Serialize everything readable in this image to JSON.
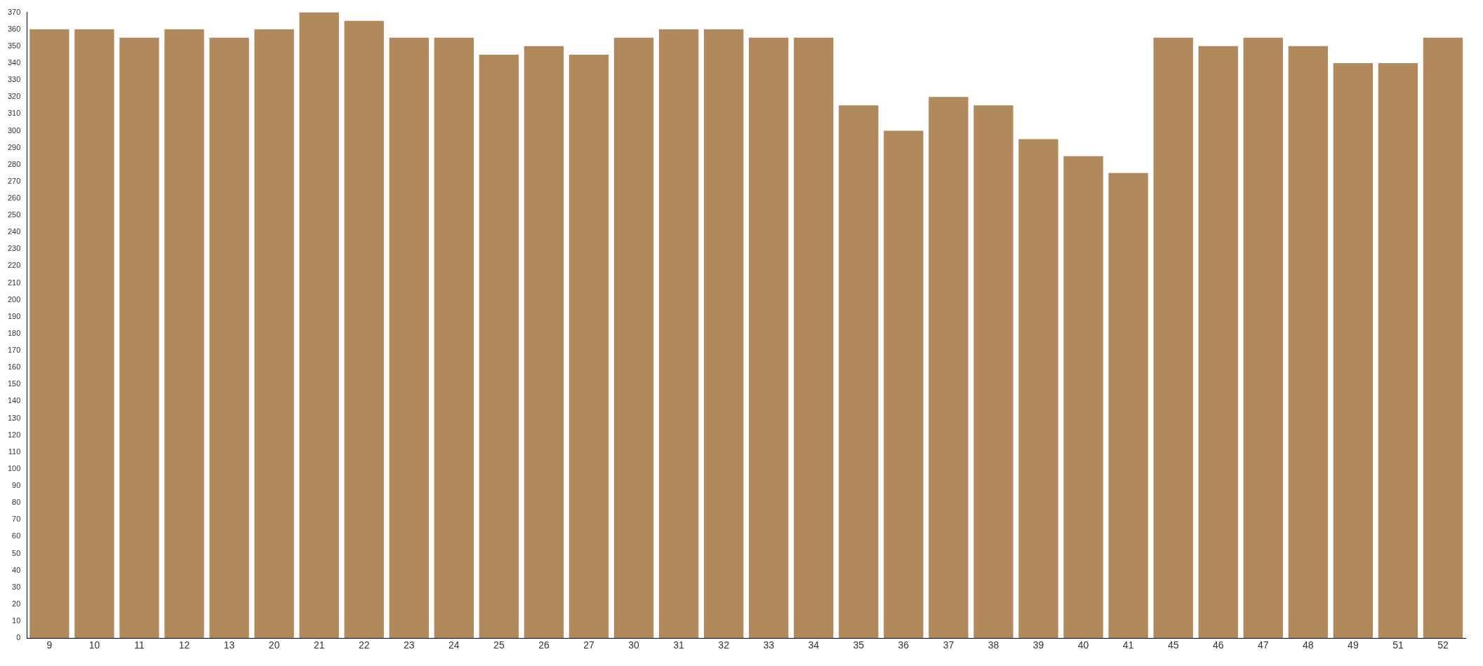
{
  "chart_data": {
    "type": "bar",
    "categories": [
      "9",
      "10",
      "11",
      "12",
      "13",
      "20",
      "21",
      "22",
      "23",
      "24",
      "25",
      "26",
      "27",
      "30",
      "31",
      "32",
      "33",
      "34",
      "35",
      "36",
      "37",
      "38",
      "39",
      "40",
      "41",
      "45",
      "46",
      "47",
      "48",
      "49",
      "51",
      "52"
    ],
    "values": [
      360,
      360,
      355,
      360,
      355,
      360,
      370,
      365,
      355,
      355,
      345,
      350,
      345,
      355,
      360,
      360,
      355,
      355,
      315,
      300,
      320,
      315,
      295,
      285,
      275,
      355,
      350,
      355,
      350,
      340,
      340,
      355
    ],
    "color": "#b08a5c",
    "ylim": [
      0,
      370
    ],
    "yticks": [
      0,
      10,
      20,
      30,
      40,
      50,
      60,
      70,
      80,
      90,
      100,
      110,
      120,
      130,
      140,
      150,
      160,
      170,
      180,
      190,
      200,
      210,
      220,
      230,
      240,
      250,
      260,
      270,
      280,
      290,
      300,
      310,
      320,
      330,
      340,
      350,
      360,
      370
    ],
    "grid": false
  }
}
